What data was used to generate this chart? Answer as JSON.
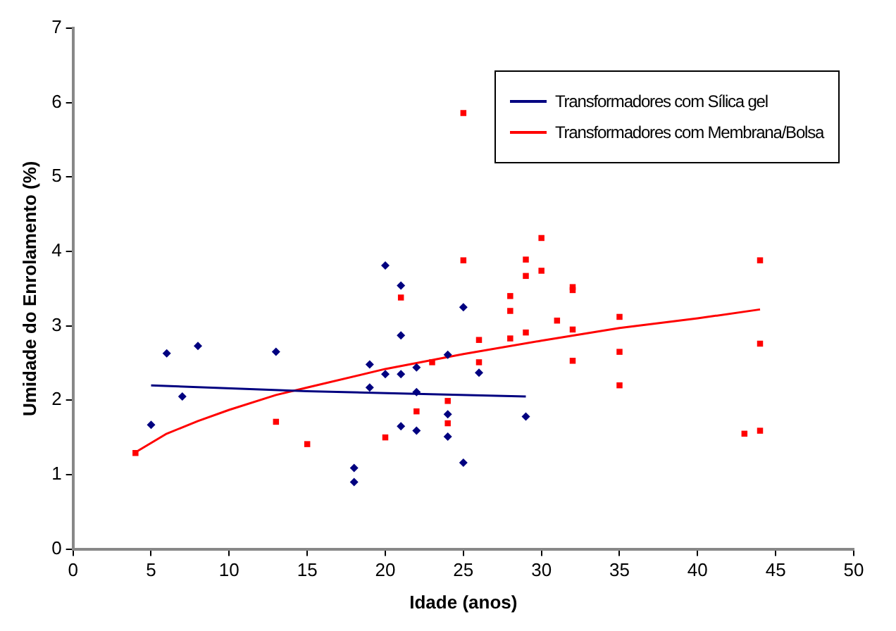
{
  "chart_data": {
    "type": "scatter",
    "xlabel": "Idade (anos)",
    "ylabel": "Umidade do Enrolamento (%)",
    "xlim": [
      0,
      50
    ],
    "xticks": [
      0,
      5,
      10,
      15,
      20,
      25,
      30,
      35,
      40,
      45,
      50
    ],
    "ylim": [
      0,
      7
    ],
    "yticks": [
      0,
      1,
      2,
      3,
      4,
      5,
      6,
      7
    ],
    "grid": false,
    "legend": "top right",
    "series": [
      {
        "type": "scatter",
        "marker": "diamond",
        "color": "#000080",
        "x": [
          5,
          6,
          7,
          8,
          13,
          18,
          18,
          19,
          19,
          20,
          20,
          21,
          21,
          21,
          21,
          22,
          22,
          22,
          24,
          24,
          24,
          25,
          25,
          26,
          29
        ],
        "values": [
          1.67,
          2.63,
          2.05,
          2.73,
          2.65,
          1.09,
          0.9,
          2.48,
          2.17,
          3.81,
          2.35,
          3.54,
          2.87,
          2.35,
          1.65,
          2.44,
          2.11,
          1.59,
          2.61,
          1.81,
          1.51,
          3.25,
          1.16,
          2.37,
          1.78
        ]
      },
      {
        "type": "scatter",
        "marker": "square",
        "color": "#ff0000",
        "x": [
          4,
          13,
          15,
          20,
          21,
          22,
          23,
          24,
          24,
          25,
          25,
          26,
          26,
          28,
          28,
          28,
          29,
          29,
          29,
          30,
          30,
          31,
          32,
          32,
          32,
          32,
          35,
          35,
          35,
          43,
          44,
          44,
          44
        ],
        "values": [
          1.29,
          1.71,
          1.41,
          1.5,
          3.38,
          1.85,
          2.51,
          1.99,
          1.69,
          3.88,
          5.86,
          2.81,
          2.51,
          3.4,
          3.2,
          2.83,
          3.89,
          3.67,
          2.91,
          3.74,
          4.18,
          3.07,
          3.52,
          3.48,
          2.95,
          2.53,
          3.12,
          2.65,
          2.2,
          1.55,
          1.59,
          2.76,
          3.88
        ]
      },
      {
        "type": "line",
        "name": "Transformadores com Sílica gel",
        "marker": "none",
        "color": "#000080",
        "x": [
          5,
          15,
          29
        ],
        "values": [
          2.2,
          2.12,
          2.05
        ]
      },
      {
        "type": "line",
        "name": "Transformadores com Membrana/Bolsa",
        "marker": "none",
        "color": "#ff0000",
        "x": [
          4,
          6,
          8,
          10,
          13,
          15,
          20,
          25,
          30,
          35,
          40,
          44
        ],
        "values": [
          1.3,
          1.55,
          1.72,
          1.87,
          2.07,
          2.17,
          2.42,
          2.62,
          2.8,
          2.97,
          3.1,
          3.22
        ]
      }
    ]
  }
}
